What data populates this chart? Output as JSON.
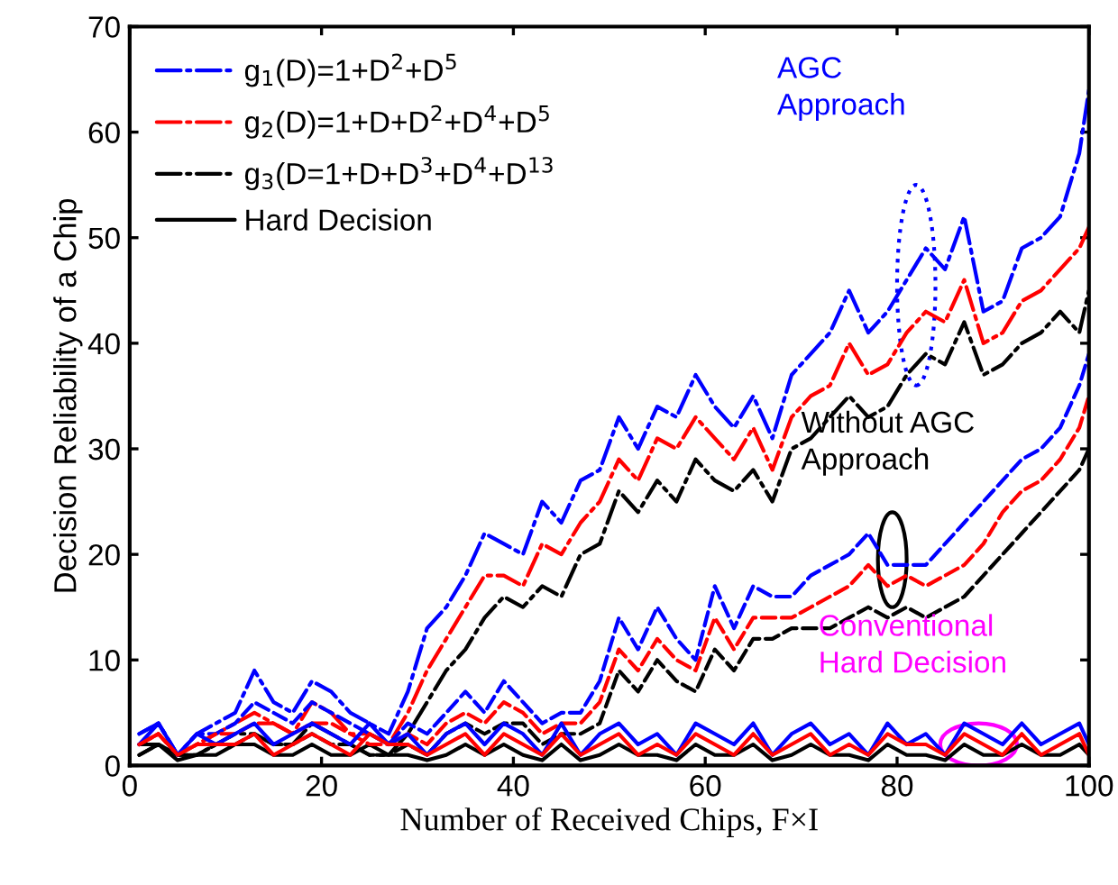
{
  "chart_data": {
    "type": "line",
    "xlabel": "Number of Received Chips, F×I",
    "ylabel": "Decision Reliability of a Chip",
    "x": [
      1,
      3,
      5,
      7,
      9,
      11,
      13,
      15,
      17,
      19,
      21,
      23,
      25,
      27,
      29,
      31,
      33,
      35,
      37,
      39,
      41,
      43,
      45,
      47,
      49,
      51,
      53,
      55,
      57,
      59,
      61,
      63,
      65,
      67,
      69,
      71,
      73,
      75,
      77,
      79,
      81,
      83,
      85,
      87,
      89,
      91,
      93,
      95,
      97,
      99,
      100
    ],
    "series": [
      {
        "name": "g$_{1}$(D)=1+D$^{2}$+D$^{5}$",
        "color": "#0000ff",
        "line_style": "dashdot",
        "values": [
          3,
          4,
          1,
          3,
          4,
          5,
          9,
          6,
          5,
          8,
          7,
          5,
          4,
          3,
          7,
          13,
          15,
          18,
          22,
          21,
          20,
          25,
          23,
          27,
          28,
          33,
          30,
          34,
          33,
          37,
          34,
          32,
          35,
          31,
          37,
          39,
          41,
          45,
          41,
          43,
          46,
          49,
          47,
          52,
          43,
          44,
          49,
          50,
          52,
          58,
          64
        ]
      },
      {
        "name": "g$_{2}$(D)=1+D+D$^{2}$+D$^{4}$+D$^{5}$",
        "color": "#ff0000",
        "line_style": "dashdot",
        "values": [
          2,
          3,
          1,
          2,
          3,
          4,
          5,
          4,
          3,
          6,
          5,
          3,
          3,
          2,
          5,
          9,
          12,
          15,
          18,
          18,
          17,
          21,
          20,
          23,
          25,
          29,
          27,
          31,
          30,
          33,
          31,
          29,
          32,
          28,
          33,
          35,
          36,
          40,
          37,
          38,
          41,
          43,
          42,
          46,
          40,
          41,
          44,
          45,
          47,
          49,
          51
        ]
      },
      {
        "name": "g$_{3}$(D=1+D+D$^{3}$+D$^{4}$+D$^{13}$",
        "color": "#000000",
        "line_style": "dashdot",
        "values": [
          2,
          2,
          1,
          1,
          2,
          3,
          3,
          2,
          2,
          4,
          3,
          2,
          1,
          1,
          3,
          6,
          9,
          11,
          14,
          16,
          15,
          17,
          16,
          20,
          21,
          26,
          24,
          27,
          25,
          29,
          27,
          26,
          28,
          25,
          30,
          31,
          33,
          35,
          33,
          34,
          37,
          39,
          38,
          42,
          37,
          38,
          40,
          41,
          43,
          41,
          45
        ]
      },
      {
        "name": "Hard Decision",
        "color": "#000000",
        "line_style": "solid",
        "values": [
          1,
          2,
          0.5,
          1,
          1,
          2,
          2,
          1,
          1,
          2,
          1,
          1,
          2,
          1,
          1,
          0.5,
          1,
          2,
          1,
          2,
          1,
          0.5,
          2,
          0.5,
          1,
          2,
          1,
          1,
          0.5,
          2,
          1,
          1,
          2,
          0.5,
          1,
          2,
          1,
          1,
          0.5,
          2,
          1,
          1,
          0.5,
          2,
          1,
          1,
          2,
          1,
          1,
          2,
          1
        ]
      },
      {
        "color": "#0000ff",
        "line_style": "dashed",
        "values": [
          3,
          4,
          1,
          3,
          3,
          4,
          6,
          5,
          4,
          6,
          5,
          4,
          3,
          2,
          4,
          3,
          5,
          7,
          5,
          8,
          6,
          4,
          5,
          5,
          8,
          14,
          11,
          15,
          12,
          10,
          17,
          13,
          17,
          16,
          16,
          18,
          19,
          20,
          22,
          19,
          19,
          19,
          21,
          23,
          25,
          27,
          29,
          30,
          32,
          36,
          39
        ]
      },
      {
        "color": "#ff0000",
        "line_style": "dashed",
        "values": [
          2,
          3,
          1,
          2,
          3,
          3,
          4,
          4,
          3,
          4,
          4,
          3,
          2,
          2,
          3,
          2,
          4,
          5,
          4,
          6,
          5,
          3,
          4,
          4,
          6,
          11,
          9,
          12,
          10,
          9,
          14,
          11,
          14,
          14,
          14,
          15,
          16,
          17,
          19,
          17,
          18,
          17,
          18,
          19,
          21,
          24,
          26,
          27,
          29,
          32,
          35
        ]
      },
      {
        "color": "#000000",
        "line_style": "dashed",
        "values": [
          1,
          2,
          1,
          1,
          2,
          2,
          3,
          2,
          2,
          3,
          2,
          2,
          1,
          1,
          2,
          1,
          3,
          4,
          3,
          4,
          4,
          2,
          3,
          3,
          4,
          9,
          7,
          10,
          8,
          7,
          11,
          9,
          12,
          12,
          13,
          13,
          13,
          14,
          15,
          14,
          15,
          14,
          15,
          16,
          18,
          20,
          22,
          24,
          26,
          28,
          30
        ]
      },
      {
        "color": "#0000ff",
        "line_style": "solid",
        "values": [
          2,
          4,
          1,
          3,
          2,
          3,
          4,
          2,
          3,
          4,
          3,
          2,
          4,
          2,
          3,
          1,
          3,
          4,
          2,
          4,
          3,
          1,
          4,
          1,
          3,
          4,
          2,
          3,
          1,
          4,
          3,
          2,
          4,
          1,
          3,
          4,
          2,
          3,
          1,
          4,
          2,
          3,
          1,
          4,
          3,
          2,
          4,
          2,
          3,
          4,
          2
        ]
      },
      {
        "color": "#ff0000",
        "line_style": "solid",
        "values": [
          2,
          3,
          1,
          2,
          2,
          2,
          3,
          1,
          2,
          3,
          2,
          1,
          3,
          2,
          2,
          1,
          2,
          3,
          1,
          3,
          2,
          1,
          3,
          1,
          2,
          3,
          1,
          2,
          1,
          3,
          2,
          1,
          3,
          1,
          2,
          3,
          1,
          2,
          1,
          3,
          2,
          2,
          1,
          3,
          2,
          1,
          3,
          1,
          2,
          3,
          1
        ]
      }
    ],
    "annotations": [
      "AGC\nApproach",
      "Without AGC\nApproach",
      "Conventional\nHard Decision"
    ],
    "xlim": [
      0,
      100
    ],
    "xticks": [
      0,
      20,
      40,
      60,
      80,
      100
    ],
    "ylim": [
      0,
      70
    ],
    "yticks": [
      0,
      10,
      20,
      30,
      40,
      50,
      60,
      70
    ],
    "grid": false,
    "legend": "top left",
    "marker": "none"
  }
}
